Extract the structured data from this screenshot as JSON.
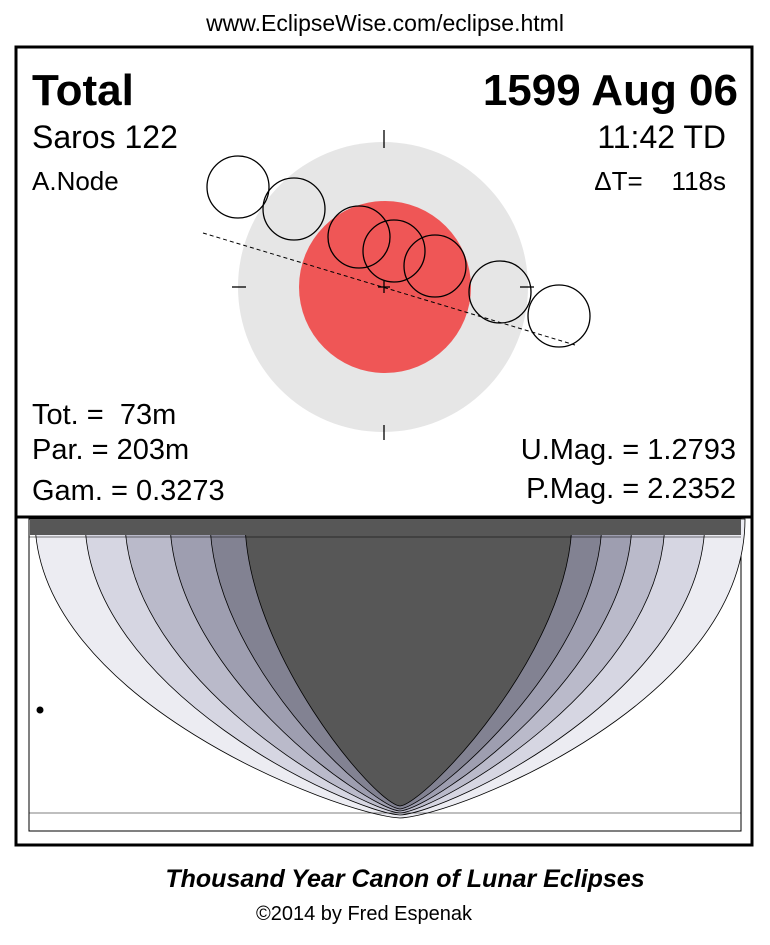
{
  "header": {
    "url": "www.EclipseWise.com/eclipse.html"
  },
  "eclipse": {
    "type": "Total",
    "date": "1599 Aug 06",
    "saros": "Saros 122",
    "time": "11:42 TD",
    "node": "A.Node",
    "delta_t": "ΔT=    118s",
    "totality": "Tot. =  73m",
    "partiality": "Par. = 203m",
    "gamma": "Gam. = 0.3273",
    "umbral_mag": "U.Mag. = 1.2793",
    "penumbral_mag": "P.Mag. = 2.2352"
  },
  "footer": {
    "title": "Thousand Year Canon of Lunar Eclipses",
    "credit": "©2014 by Fred Espenak"
  }
}
